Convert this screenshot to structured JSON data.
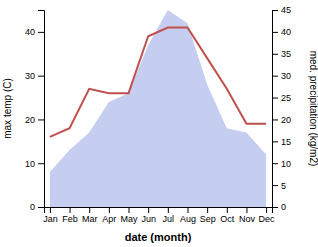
{
  "chart_data": {
    "type": "line",
    "xlabel": "date (month)",
    "ylabel": "max temp (C)",
    "y2label": "med. precipitation (kg/m2)",
    "categories": [
      "Jan",
      "Feb",
      "Mar",
      "Apr",
      "May",
      "Jun",
      "Jul",
      "Aug",
      "Sep",
      "Oct",
      "Nov",
      "Dec"
    ],
    "series": [
      {
        "type": "area",
        "axis": "y2",
        "color": "#c5cef0",
        "values": [
          8,
          13,
          17,
          24,
          26,
          37,
          45,
          42,
          28,
          18,
          17,
          12
        ]
      },
      {
        "type": "line",
        "color": "#c0504d",
        "values": [
          16,
          18,
          27,
          26,
          26,
          39,
          41,
          41,
          34,
          27,
          19,
          19
        ]
      }
    ],
    "ylim": [
      0,
      45
    ],
    "yticks": [
      0,
      10,
      20,
      30,
      40
    ],
    "y2lim": [
      0,
      45
    ],
    "y2ticks": [
      0,
      5,
      10,
      15,
      20,
      25,
      30,
      35,
      40,
      45
    ]
  }
}
